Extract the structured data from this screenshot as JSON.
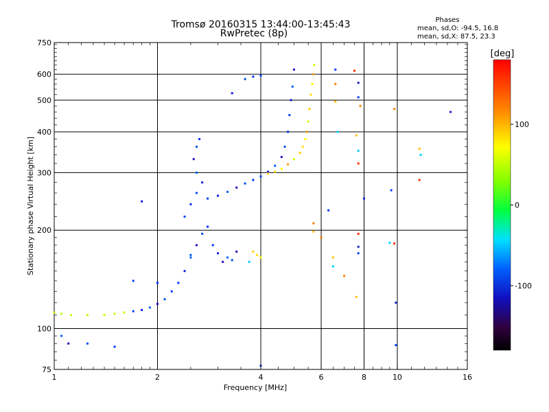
{
  "header": {
    "title_line1": "Tromsø 20160315 13:44:00-13:45:43",
    "title_line2": "RwPretec (8p)",
    "stats_title": "Phases",
    "stats_o": "mean, sd,O: -94.5, 16.8",
    "stats_x": "mean, sd,X:  87.5, 23.3"
  },
  "colorbar": {
    "unit_label": "[deg]",
    "ticks": [
      {
        "value": 100,
        "label": "100"
      },
      {
        "value": 0,
        "label": "0"
      },
      {
        "value": -100,
        "label": "-100"
      }
    ],
    "range": [
      -180,
      180
    ]
  },
  "chart_data": {
    "type": "scatter",
    "title": "Tromsø 20160315 13:44:00-13:45:43",
    "subtitle": "RwPretec (8p)",
    "xlabel": "Frequency [MHz]",
    "ylabel": "Stationary phase Virtual Height [km]",
    "xscale": "log",
    "yscale": "log",
    "xlim": [
      1,
      16
    ],
    "ylim": [
      75,
      750
    ],
    "grid": true,
    "x_ticks": [
      {
        "value": 1,
        "label": "1",
        "major": true
      },
      {
        "value": 2,
        "label": "2",
        "major": true
      },
      {
        "value": 4,
        "label": "4",
        "major": true
      },
      {
        "value": 6,
        "label": "6",
        "major": true
      },
      {
        "value": 8,
        "label": "8",
        "major": true
      },
      {
        "value": 10,
        "label": "10",
        "major": true
      },
      {
        "value": 16,
        "label": "16",
        "major": false
      }
    ],
    "y_ticks": [
      {
        "value": 75,
        "label": "75"
      },
      {
        "value": 100,
        "label": "100"
      },
      {
        "value": 200,
        "label": "200"
      },
      {
        "value": 300,
        "label": "300"
      },
      {
        "value": 400,
        "label": "400"
      },
      {
        "value": 500,
        "label": "500"
      },
      {
        "value": 600,
        "label": "600"
      },
      {
        "value": 750,
        "label": "750"
      }
    ],
    "colorbar_label": "[deg]",
    "series": [
      {
        "mode": "O",
        "color_phase_approx": -95,
        "points": [
          [
            1.0,
            112
          ],
          [
            1.05,
            111
          ],
          [
            1.12,
            110
          ],
          [
            1.25,
            110
          ],
          [
            1.4,
            110
          ],
          [
            1.5,
            111
          ],
          [
            1.6,
            112
          ],
          [
            1.7,
            113
          ],
          [
            1.8,
            114
          ],
          [
            1.9,
            116
          ],
          [
            2.0,
            119
          ],
          [
            2.1,
            123
          ],
          [
            2.2,
            130
          ],
          [
            2.3,
            138
          ],
          [
            2.4,
            150
          ],
          [
            2.5,
            165
          ],
          [
            2.6,
            180
          ],
          [
            2.7,
            195
          ],
          [
            2.8,
            205
          ],
          [
            2.9,
            180
          ],
          [
            3.0,
            170
          ],
          [
            3.2,
            165
          ],
          [
            3.4,
            172
          ],
          [
            2.4,
            220
          ],
          [
            2.5,
            240
          ],
          [
            2.6,
            260
          ],
          [
            2.7,
            280
          ],
          [
            2.6,
            300
          ],
          [
            2.55,
            330
          ],
          [
            2.6,
            360
          ],
          [
            2.65,
            380
          ],
          [
            2.8,
            250
          ],
          [
            3.0,
            255
          ],
          [
            3.2,
            262
          ],
          [
            3.4,
            270
          ],
          [
            3.6,
            278
          ],
          [
            3.8,
            285
          ],
          [
            4.0,
            292
          ],
          [
            4.2,
            302
          ],
          [
            4.4,
            315
          ],
          [
            4.6,
            335
          ],
          [
            4.7,
            360
          ],
          [
            4.8,
            400
          ],
          [
            4.85,
            450
          ],
          [
            4.9,
            500
          ],
          [
            4.95,
            550
          ],
          [
            5.0,
            620
          ],
          [
            3.6,
            580
          ],
          [
            3.8,
            590
          ],
          [
            4.0,
            595
          ],
          [
            3.3,
            525
          ],
          [
            1.05,
            95
          ],
          [
            1.1,
            90
          ],
          [
            1.25,
            90
          ],
          [
            1.5,
            88
          ],
          [
            4.0,
            77
          ],
          [
            1.8,
            245
          ],
          [
            2.5,
            168
          ],
          [
            3.1,
            160
          ],
          [
            3.3,
            162
          ],
          [
            2.0,
            138
          ],
          [
            1.7,
            140
          ]
        ]
      },
      {
        "mode": "X",
        "color_phase_approx": 90,
        "points": [
          [
            4.2,
            298
          ],
          [
            4.4,
            302
          ],
          [
            4.6,
            308
          ],
          [
            4.8,
            318
          ],
          [
            5.0,
            330
          ],
          [
            5.2,
            345
          ],
          [
            5.3,
            360
          ],
          [
            5.4,
            380
          ],
          [
            5.45,
            400
          ],
          [
            5.5,
            430
          ],
          [
            5.55,
            470
          ],
          [
            5.6,
            520
          ],
          [
            5.65,
            560
          ],
          [
            5.7,
            600
          ],
          [
            5.72,
            640
          ],
          [
            3.8,
            172
          ],
          [
            3.9,
            168
          ],
          [
            4.0,
            165
          ]
        ]
      },
      {
        "mode": "noise",
        "points": [
          [
            6.6,
            620
          ],
          [
            6.6,
            560
          ],
          [
            6.6,
            495
          ],
          [
            6.7,
            400
          ],
          [
            7.5,
            615
          ],
          [
            7.7,
            565
          ],
          [
            7.7,
            510
          ],
          [
            7.8,
            480
          ],
          [
            7.6,
            390
          ],
          [
            7.7,
            350
          ],
          [
            7.7,
            320
          ],
          [
            8.0,
            250
          ],
          [
            9.6,
            265
          ],
          [
            9.8,
            470
          ],
          [
            11.6,
            355
          ],
          [
            11.7,
            340
          ],
          [
            11.6,
            285
          ],
          [
            14.3,
            460
          ],
          [
            6.3,
            230
          ],
          [
            6.0,
            190
          ],
          [
            6.5,
            165
          ],
          [
            6.5,
            155
          ],
          [
            7.7,
            195
          ],
          [
            7.7,
            178
          ],
          [
            7.7,
            170
          ],
          [
            7.0,
            145
          ],
          [
            7.6,
            125
          ],
          [
            9.5,
            183
          ],
          [
            9.8,
            182
          ],
          [
            9.9,
            120
          ],
          [
            9.9,
            89
          ],
          [
            5.7,
            210
          ],
          [
            5.7,
            198
          ],
          [
            3.7,
            160
          ]
        ]
      }
    ]
  }
}
